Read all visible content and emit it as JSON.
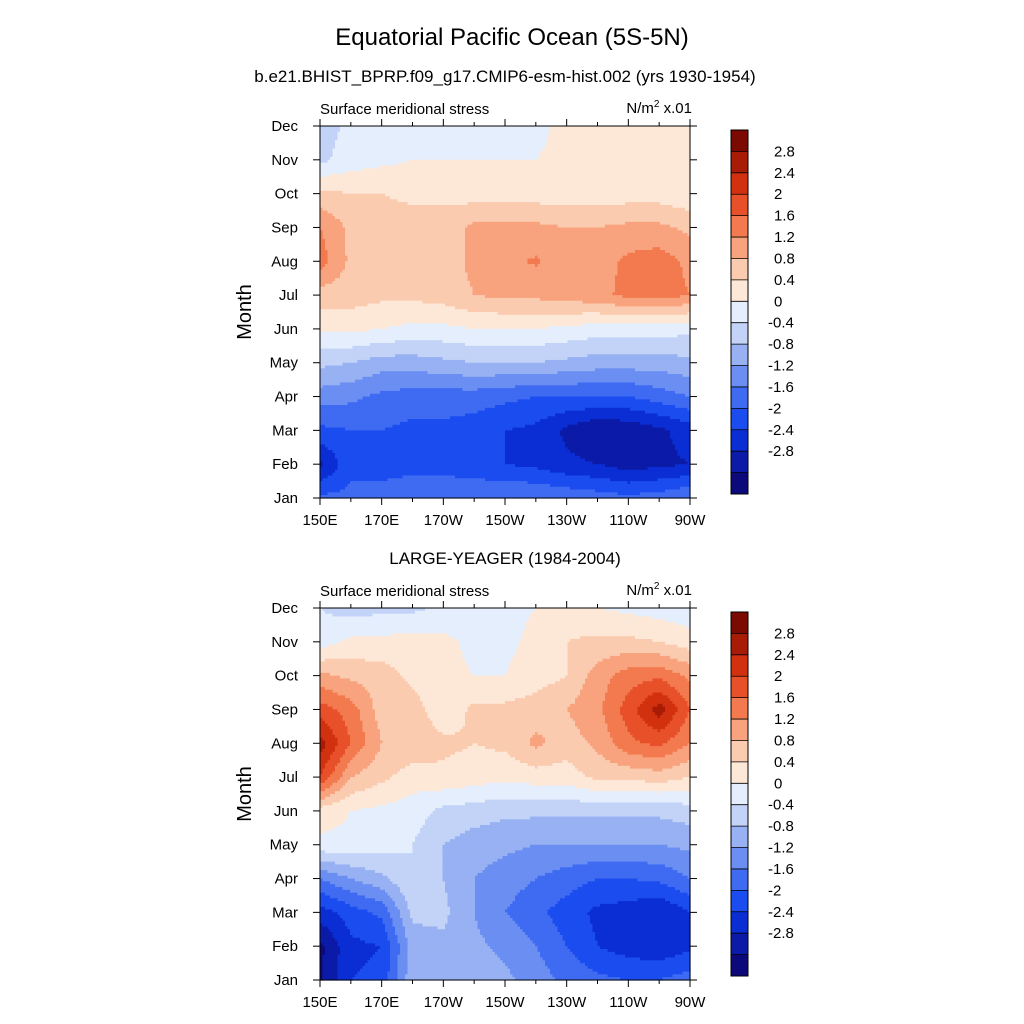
{
  "figure": {
    "title": "Equatorial Pacific Ocean (5S-5N)"
  },
  "chart_data": [
    {
      "type": "heatmap",
      "subtitle": "b.e21.BHIST_BPRP.f09_g17.CMIP6-esm-hist.002 (yrs 1930-1954)",
      "left_string": "Surface meridional stress",
      "right_string": {
        "unit": "N/m",
        "sup": "2",
        "scale": " x.01"
      },
      "ylabel": "Month",
      "x_tick_labels": [
        "150E",
        "170E",
        "170W",
        "150W",
        "130W",
        "110W",
        "90W"
      ],
      "x_tick_lon": [
        150,
        170,
        190,
        210,
        230,
        250,
        270
      ],
      "y_tick_labels": [
        "Jan",
        "Feb",
        "Mar",
        "Apr",
        "May",
        "Jun",
        "Jul",
        "Aug",
        "Sep",
        "Oct",
        "Nov",
        "Dec"
      ],
      "xlim": [
        150,
        270
      ],
      "ylim": [
        1,
        12
      ],
      "x": [
        150,
        160,
        170,
        180,
        190,
        200,
        210,
        220,
        230,
        240,
        250,
        260,
        270
      ],
      "y": [
        1,
        2,
        3,
        4,
        5,
        6,
        7,
        8,
        9,
        10,
        11,
        12
      ],
      "z": [
        [
          -1.5,
          -1.5,
          -1.4,
          -1.2,
          -1.2,
          -1.2,
          -1.2,
          -1.2,
          -1.3,
          -1.4,
          -1.5,
          -1.4,
          -1.2
        ],
        [
          -2.5,
          -1.7,
          -1.8,
          -1.8,
          -1.8,
          -1.9,
          -2.0,
          -2.1,
          -2.3,
          -2.4,
          -2.6,
          -2.5,
          -2.4
        ],
        [
          -1.7,
          -1.6,
          -1.6,
          -1.7,
          -1.7,
          -1.8,
          -2.0,
          -2.1,
          -2.5,
          -2.8,
          -2.7,
          -2.5,
          -2.2
        ],
        [
          -1.0,
          -1.1,
          -1.3,
          -1.4,
          -1.4,
          -1.4,
          -1.5,
          -1.6,
          -1.6,
          -1.6,
          -1.6,
          -1.4,
          -1.2
        ],
        [
          -0.3,
          -0.4,
          -0.6,
          -0.6,
          -0.5,
          -0.4,
          -0.4,
          -0.4,
          -0.5,
          -0.6,
          -0.6,
          -0.6,
          -0.5
        ],
        [
          0.5,
          0.5,
          0.4,
          0.3,
          0.3,
          0.4,
          0.4,
          0.4,
          0.3,
          0.2,
          0.2,
          0.2,
          0.1
        ],
        [
          1.0,
          1.0,
          0.9,
          0.9,
          1.0,
          1.2,
          1.3,
          1.3,
          1.4,
          1.5,
          1.7,
          1.8,
          1.6
        ],
        [
          1.8,
          1.1,
          1.0,
          1.0,
          1.0,
          1.3,
          1.5,
          1.65,
          1.4,
          1.4,
          1.7,
          1.8,
          1.5
        ],
        [
          1.6,
          1.1,
          1.0,
          1.0,
          1.0,
          1.3,
          1.3,
          1.3,
          1.2,
          1.2,
          1.3,
          1.3,
          1.1
        ],
        [
          0.9,
          0.8,
          0.8,
          0.7,
          0.7,
          0.6,
          0.6,
          0.6,
          0.6,
          0.6,
          0.6,
          0.6,
          0.5
        ],
        [
          -0.1,
          0.2,
          0.3,
          0.4,
          0.4,
          0.4,
          0.4,
          0.4,
          0.5,
          0.5,
          0.5,
          0.5,
          0.4
        ],
        [
          -0.2,
          0.1,
          0.2,
          0.2,
          0.2,
          0.2,
          0.2,
          0.3,
          0.5,
          0.6,
          0.6,
          0.5,
          0.4
        ]
      ],
      "colorbar_labels": [
        "2.8",
        "2.4",
        "2",
        "1.6",
        "1.2",
        "0.8",
        "0.4",
        "0",
        "-0.4",
        "-0.8",
        "-1.2",
        "-1.6",
        "-2",
        "-2.4",
        "-2.8"
      ]
    },
    {
      "type": "heatmap",
      "subtitle": "LARGE-YEAGER (1984-2004)",
      "left_string": "Surface meridional stress",
      "right_string": {
        "unit": "N/m",
        "sup": "2",
        "scale": " x.01"
      },
      "ylabel": "Month",
      "x_tick_labels": [
        "150E",
        "170E",
        "170W",
        "150W",
        "130W",
        "110W",
        "90W"
      ],
      "x_tick_lon": [
        150,
        170,
        190,
        210,
        230,
        250,
        270
      ],
      "y_tick_labels": [
        "Jan",
        "Feb",
        "Mar",
        "Apr",
        "May",
        "Jun",
        "Jul",
        "Aug",
        "Sep",
        "Oct",
        "Nov",
        "Dec"
      ],
      "xlim": [
        150,
        270
      ],
      "ylim": [
        1,
        12
      ],
      "x": [
        150,
        160,
        170,
        180,
        190,
        200,
        210,
        220,
        230,
        240,
        250,
        260,
        270
      ],
      "y": [
        1,
        2,
        3,
        4,
        5,
        6,
        7,
        8,
        9,
        10,
        11,
        12
      ],
      "z": [
        [
          -2.9,
          -2.0,
          -1.9,
          -0.5,
          -0.4,
          -0.6,
          -0.7,
          -1.0,
          -1.3,
          -1.5,
          -1.6,
          -1.6,
          -1.4
        ],
        [
          -2.9,
          -2.1,
          -2.0,
          -0.6,
          -0.5,
          -0.7,
          -0.9,
          -1.2,
          -1.6,
          -2.0,
          -2.2,
          -2.3,
          -2.1
        ],
        [
          -2.2,
          -1.8,
          -1.5,
          -0.3,
          -0.3,
          -0.8,
          -1.2,
          -1.5,
          -1.8,
          -2.1,
          -2.2,
          -2.4,
          -2.0
        ],
        [
          -1.2,
          -0.8,
          -0.5,
          0.0,
          -0.4,
          -0.8,
          -1.0,
          -1.2,
          -1.4,
          -1.6,
          -1.6,
          -1.5,
          -1.2
        ],
        [
          0.3,
          0.3,
          0.2,
          0.0,
          -0.4,
          -0.6,
          -0.7,
          -0.8,
          -0.8,
          -0.8,
          -0.8,
          -0.8,
          -0.7
        ],
        [
          0.6,
          0.4,
          0.3,
          0.2,
          -0.1,
          -0.2,
          -0.3,
          -0.3,
          -0.3,
          -0.3,
          -0.3,
          -0.3,
          -0.2
        ],
        [
          2.4,
          1.2,
          0.9,
          0.6,
          0.7,
          0.6,
          0.5,
          0.6,
          0.6,
          0.9,
          0.9,
          1.0,
          0.8
        ],
        [
          3.0,
          2.0,
          1.2,
          1.1,
          0.9,
          0.8,
          0.9,
          1.3,
          1.0,
          1.3,
          1.9,
          2.1,
          1.6
        ],
        [
          2.2,
          1.8,
          1.0,
          1.0,
          0.5,
          0.9,
          0.9,
          1.0,
          1.2,
          1.5,
          2.2,
          3.0,
          2.0
        ],
        [
          1.3,
          1.1,
          1.0,
          0.7,
          0.5,
          0.4,
          0.4,
          0.6,
          0.8,
          1.4,
          1.8,
          1.9,
          1.5
        ],
        [
          0.2,
          0.5,
          0.5,
          0.6,
          0.5,
          0.3,
          0.3,
          0.5,
          0.8,
          0.9,
          0.9,
          0.8,
          0.6
        ],
        [
          0.0,
          -0.2,
          -0.1,
          -0.1,
          0.1,
          0.2,
          0.3,
          0.4,
          0.6,
          0.4,
          0.3,
          0.2,
          0.1
        ]
      ],
      "colorbar_labels": [
        "2.8",
        "2.4",
        "2",
        "1.6",
        "1.2",
        "0.8",
        "0.4",
        "0",
        "-0.4",
        "-0.8",
        "-1.2",
        "-1.6",
        "-2",
        "-2.4",
        "-2.8"
      ]
    }
  ],
  "colormap": {
    "name": "BlueWhiteOrangeRed",
    "levels": [
      -2.8,
      -2.4,
      -2.0,
      -1.6,
      -1.2,
      -0.8,
      -0.4,
      0.0,
      0.4,
      0.8,
      1.2,
      1.6,
      2.0,
      2.4,
      2.8
    ],
    "colors": [
      "#0c0a7a",
      "#0b1ba8",
      "#0a2ed4",
      "#1a4cf0",
      "#3f6bf2",
      "#6b8ef2",
      "#97b1f3",
      "#c2d3f7",
      "#e4eefc",
      "#fde8d8",
      "#fbcbb0",
      "#f8a37e",
      "#f27a4e",
      "#e8502a",
      "#d2310f",
      "#a81b05",
      "#7a0a02"
    ]
  }
}
